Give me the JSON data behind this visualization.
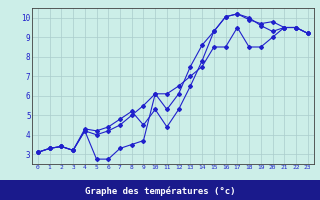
{
  "xlabel": "Graphe des températures (°c)",
  "bg_color": "#cceee8",
  "line_color": "#2020cc",
  "grid_color": "#aacccc",
  "axis_label_bg": "#1a1a8c",
  "axis_label_color": "#ffffff",
  "xlim": [
    -0.5,
    23.5
  ],
  "ylim": [
    2.5,
    10.5
  ],
  "xticks": [
    0,
    1,
    2,
    3,
    4,
    5,
    6,
    7,
    8,
    9,
    10,
    11,
    12,
    13,
    14,
    15,
    16,
    17,
    18,
    19,
    20,
    21,
    22,
    23
  ],
  "yticks": [
    3,
    4,
    5,
    6,
    7,
    8,
    9,
    10
  ],
  "line1_x": [
    0,
    1,
    2,
    3,
    4,
    5,
    6,
    7,
    8,
    9,
    10,
    11,
    12,
    13,
    14,
    15,
    16,
    17,
    18,
    19,
    20,
    21,
    22,
    23
  ],
  "line1_y": [
    3.1,
    3.3,
    3.4,
    3.2,
    4.2,
    2.75,
    2.75,
    3.3,
    3.5,
    3.7,
    6.1,
    5.3,
    6.1,
    7.5,
    8.6,
    9.3,
    10.05,
    10.2,
    9.9,
    9.7,
    9.8,
    9.5,
    9.5,
    9.2
  ],
  "line2_x": [
    0,
    1,
    2,
    3,
    4,
    5,
    6,
    7,
    8,
    9,
    10,
    11,
    12,
    13,
    14,
    15,
    16,
    17,
    18,
    19,
    20,
    21,
    22,
    23
  ],
  "line2_y": [
    3.1,
    3.3,
    3.4,
    3.2,
    4.3,
    4.2,
    4.4,
    4.8,
    5.2,
    4.5,
    5.3,
    4.4,
    5.3,
    6.5,
    7.8,
    9.3,
    10.05,
    10.2,
    10.0,
    9.6,
    9.3,
    9.5,
    9.5,
    9.2
  ],
  "line3_x": [
    0,
    1,
    2,
    3,
    4,
    5,
    6,
    7,
    8,
    9,
    10,
    11,
    12,
    13,
    14,
    15,
    16,
    17,
    18,
    19,
    20,
    21,
    22,
    23
  ],
  "line3_y": [
    3.1,
    3.3,
    3.4,
    3.2,
    4.2,
    4.0,
    4.2,
    4.5,
    5.0,
    5.5,
    6.1,
    6.1,
    6.5,
    7.0,
    7.5,
    8.5,
    8.5,
    9.5,
    8.5,
    8.5,
    9.0,
    9.5,
    9.5,
    9.2
  ]
}
